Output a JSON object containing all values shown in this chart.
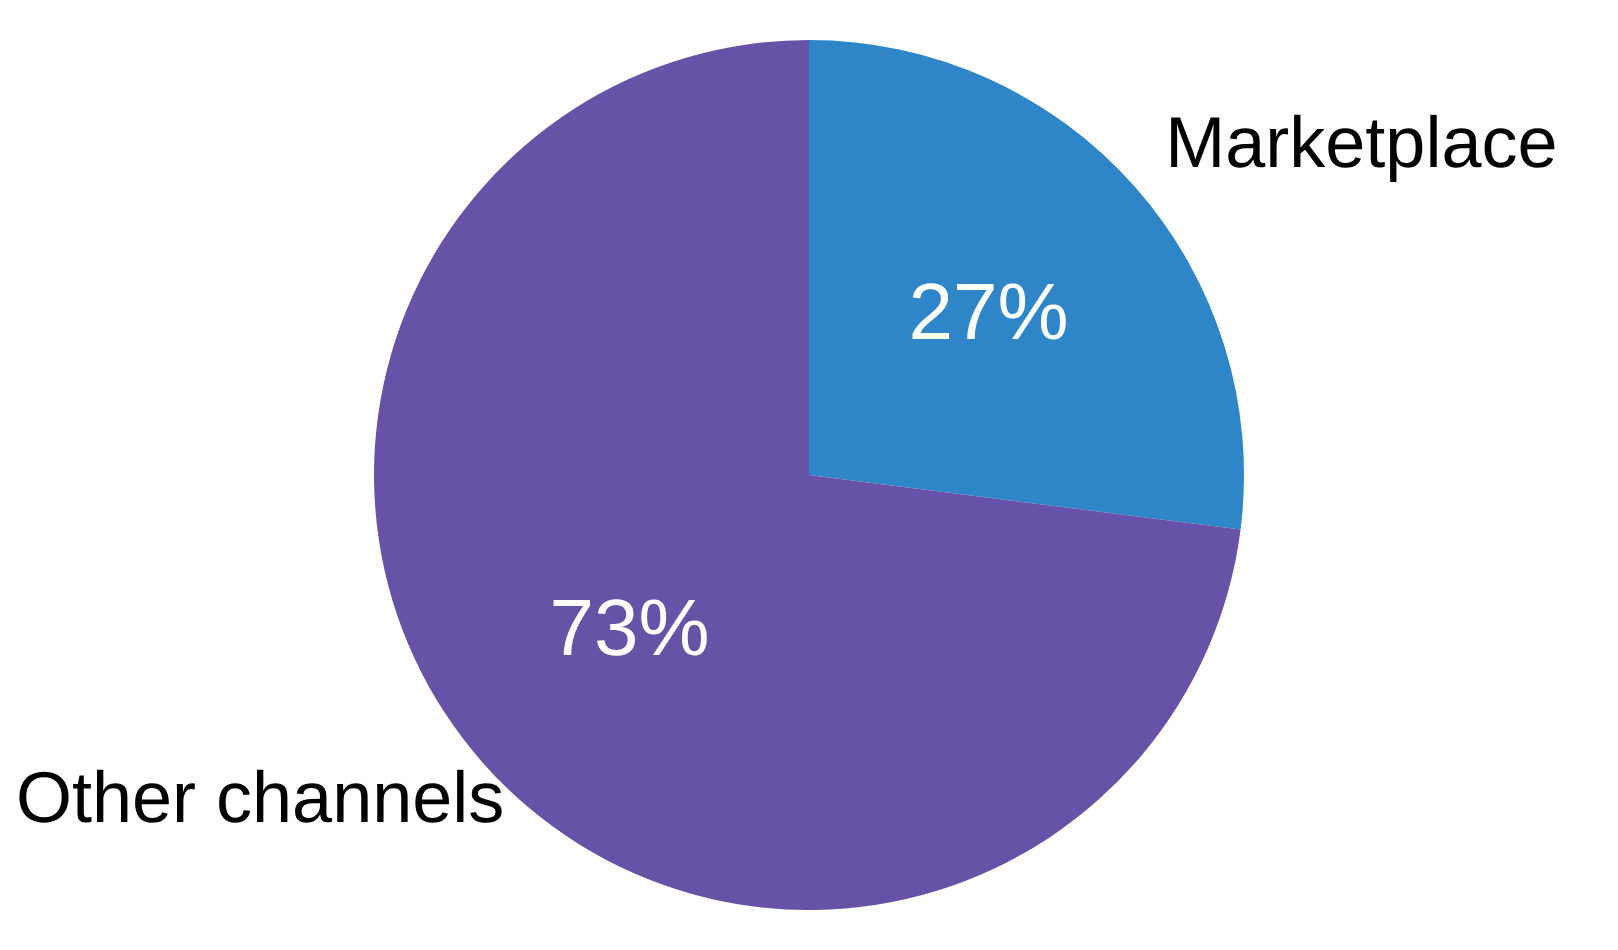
{
  "chart_data": {
    "type": "pie",
    "categories": [
      "Marketplace",
      "Other channels"
    ],
    "values": [
      27,
      73
    ],
    "colors": [
      "#2e86c8",
      "#6652a6"
    ],
    "value_labels": [
      "27%",
      "73%"
    ],
    "legend": false
  }
}
